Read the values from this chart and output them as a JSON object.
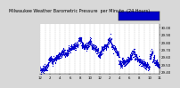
{
  "title": "Milwaukee Weather Barometric Pressure per Minute (24 Hours)",
  "bg_color": "#d8d8d8",
  "plot_bg_color": "#ffffff",
  "dot_color": "#0000cc",
  "dot_size": 0.8,
  "ylim": [
    29.38,
    30.05
  ],
  "yticks": [
    29.4,
    29.5,
    29.6,
    29.7,
    29.8,
    29.9,
    30.0
  ],
  "ytick_labels": [
    "29.40",
    "29.50",
    "29.60",
    "29.70",
    "29.80",
    "29.90",
    "30.00"
  ],
  "xlabel_fontsize": 2.8,
  "ylabel_fontsize": 2.8,
  "title_fontsize": 3.5,
  "num_points": 1440,
  "grid_color": "#999999",
  "legend_color": "#0000cc",
  "vgrid_every": 60,
  "num_vgrids": 24
}
